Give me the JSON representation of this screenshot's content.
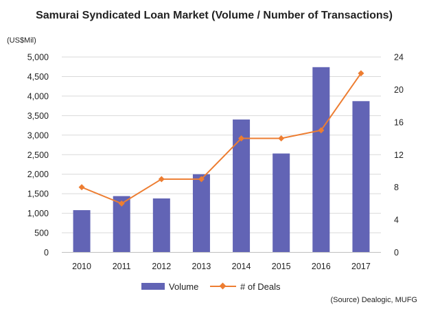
{
  "chart_data": {
    "type": "bar",
    "title": "Samurai Syndicated Loan Market (Volume / Number of Transactions)",
    "unit_label": "(US$Mil)",
    "source": "(Source) Dealogic, MUFG",
    "categories": [
      "2010",
      "2011",
      "2012",
      "2013",
      "2014",
      "2015",
      "2016",
      "2017"
    ],
    "series": [
      {
        "name": "Volume",
        "type": "bar",
        "axis": "left",
        "color": "#6264b5",
        "values": [
          1080,
          1440,
          1380,
          2000,
          3400,
          2530,
          4740,
          3870
        ]
      },
      {
        "name": "# of Deals",
        "type": "line",
        "axis": "right",
        "color": "#ed7d31",
        "values": [
          8,
          6,
          9,
          9,
          14,
          14,
          15,
          22
        ]
      }
    ],
    "y_left": {
      "min": 0,
      "max": 5000,
      "ticks": [
        "0",
        "500",
        "1,000",
        "1,500",
        "2,000",
        "2,500",
        "3,000",
        "3,500",
        "4,000",
        "4,500",
        "5,000"
      ]
    },
    "y_right": {
      "min": 0,
      "max": 24,
      "ticks": [
        "0",
        "4",
        "8",
        "12",
        "16",
        "20",
        "24"
      ]
    },
    "legend": [
      "Volume",
      "# of Deals"
    ],
    "legend_position": "bottom"
  }
}
